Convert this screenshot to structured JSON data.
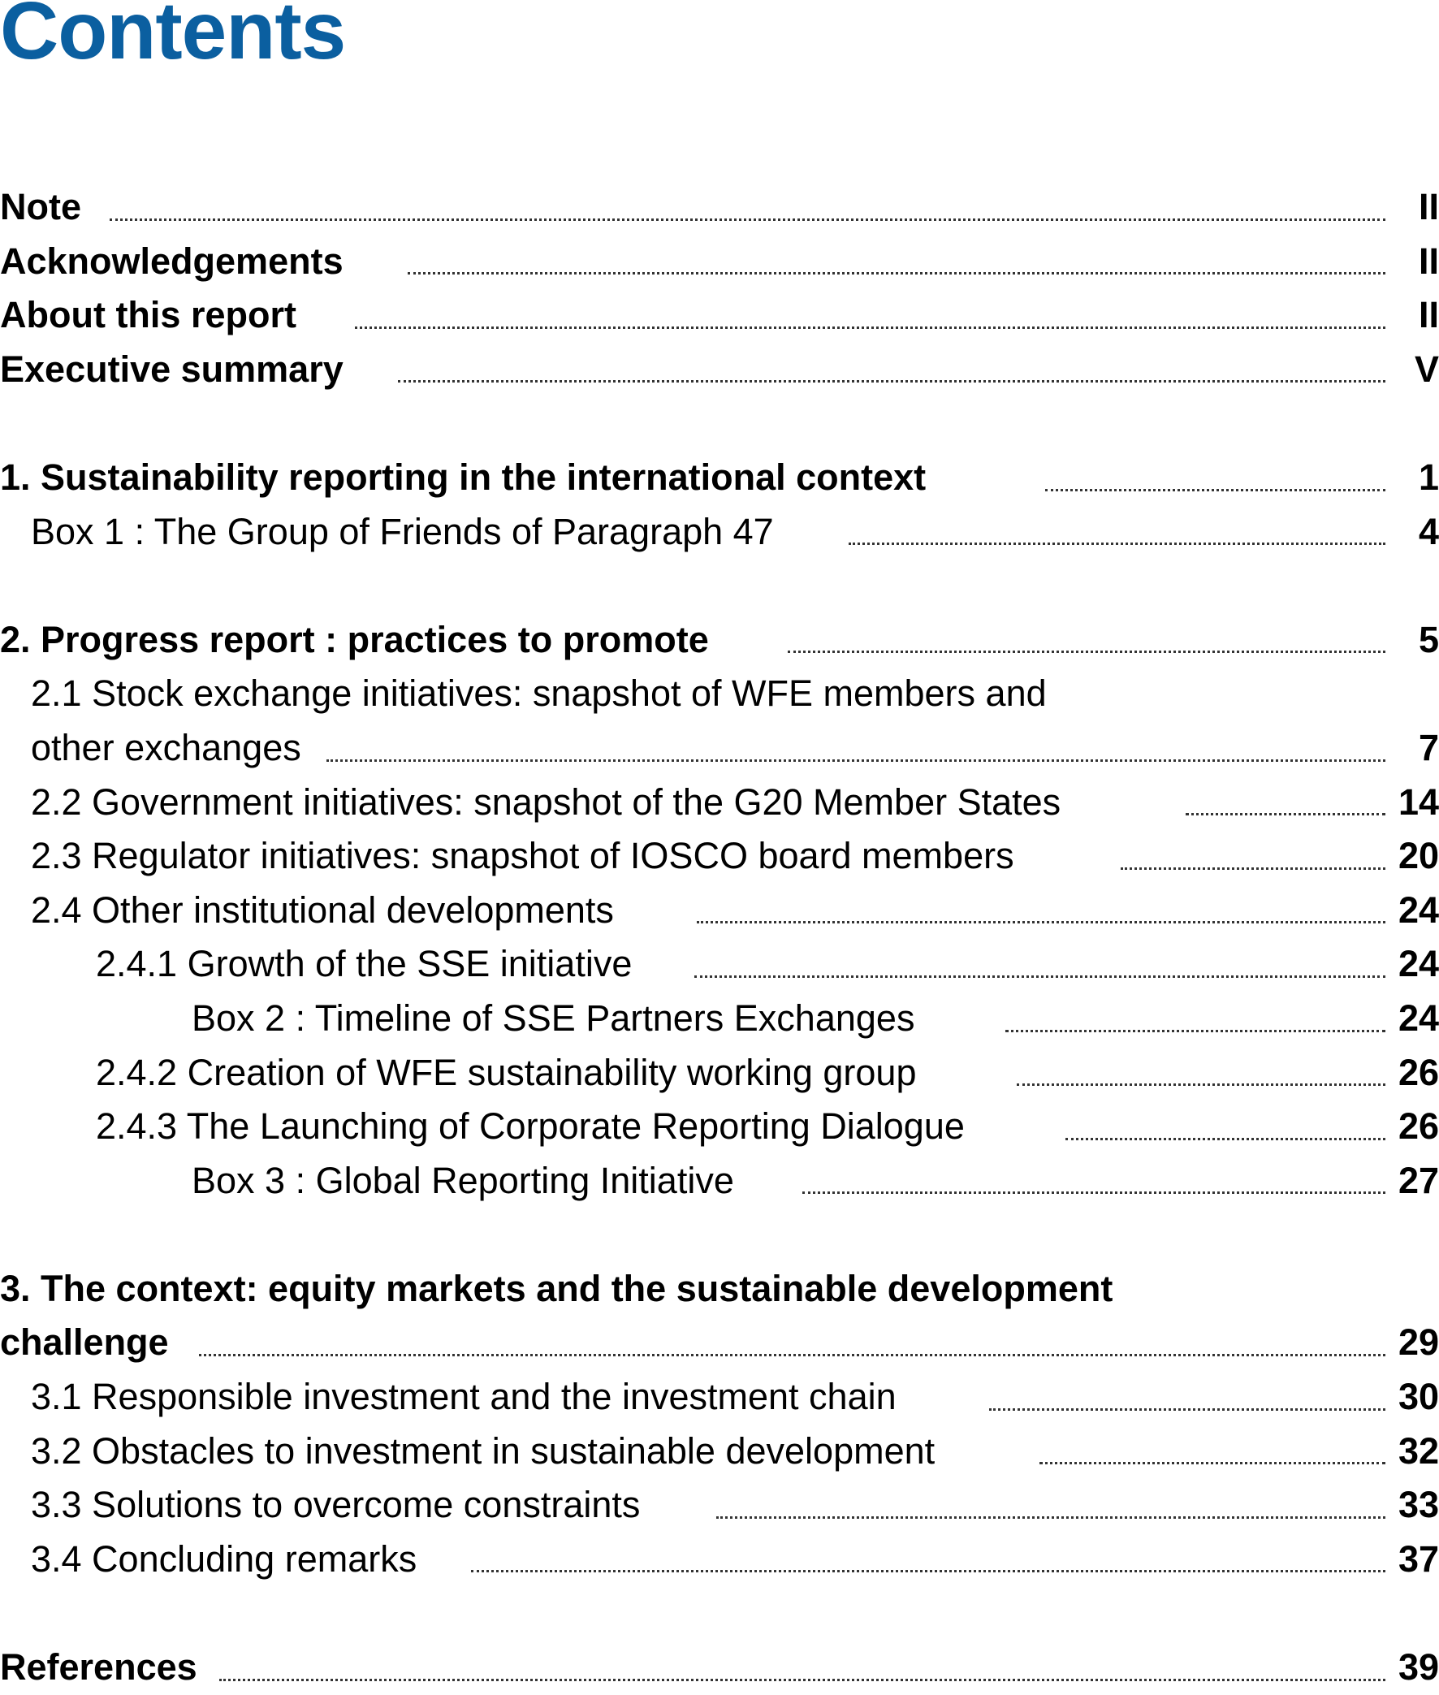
{
  "title": "Contents",
  "accent_color": "#0b5fa0",
  "entries": [
    {
      "label": "Note",
      "page": "II"
    },
    {
      "label": "Acknowledgements",
      "page": "II"
    },
    {
      "label": "About this report",
      "page": "II"
    },
    {
      "label": "Executive summary",
      "page": "V"
    },
    {
      "label": "1. Sustainability reporting in the international context",
      "page": "1"
    },
    {
      "label": "Box 1 : The Group of Friends of Paragraph 47",
      "page": "4"
    },
    {
      "label": "2. Progress report : practices to promote",
      "page": "5"
    },
    {
      "label": "2.1 Stock exchange initiatives: snapshot of WFE members and",
      "label_cont": "other exchanges",
      "page": "7"
    },
    {
      "label": "2.2 Government initiatives: snapshot of the G20 Member States",
      "page": "14"
    },
    {
      "label": "2.3 Regulator initiatives: snapshot of IOSCO board members",
      "page": "20"
    },
    {
      "label": "2.4 Other institutional developments",
      "page": "24"
    },
    {
      "label": "2.4.1 Growth of the SSE initiative",
      "page": "24"
    },
    {
      "label": "Box 2 : Timeline of SSE Partners Exchanges",
      "page": "24"
    },
    {
      "label": "2.4.2 Creation of WFE sustainability working group",
      "page": "26"
    },
    {
      "label": "2.4.3 The Launching of Corporate Reporting Dialogue",
      "page": "26"
    },
    {
      "label": "Box 3 : Global Reporting Initiative",
      "page": "27"
    },
    {
      "label": "3. The context: equity markets and the sustainable development",
      "label_cont": "challenge",
      "page": "29"
    },
    {
      "label": "3.1 Responsible investment and the investment chain",
      "page": "30"
    },
    {
      "label": "3.2 Obstacles to investment in sustainable development",
      "page": "32"
    },
    {
      "label": "3.3 Solutions to overcome constraints",
      "page": "33"
    },
    {
      "label": "3.4 Concluding remarks",
      "page": "37"
    },
    {
      "label": "References",
      "page": "39"
    }
  ]
}
